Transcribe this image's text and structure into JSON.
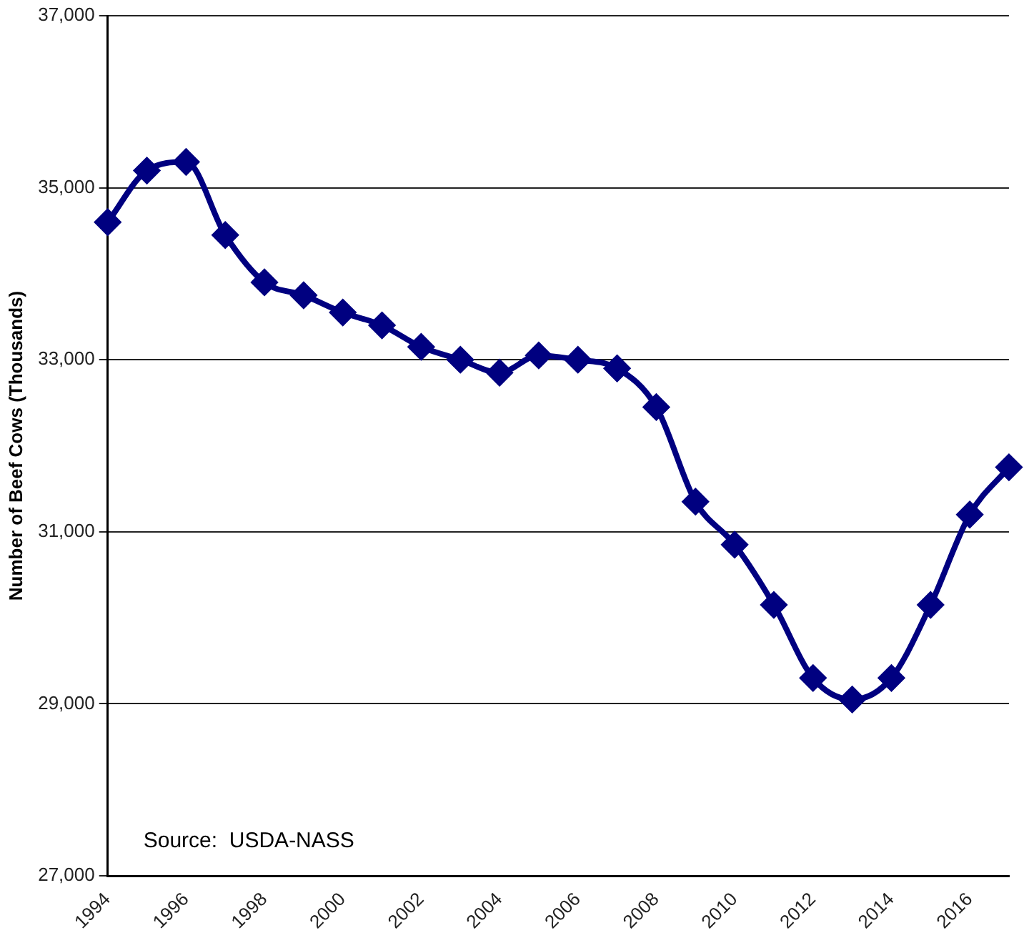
{
  "chart_data": {
    "type": "line",
    "ylabel": "Number of Beef Cows (Thousands)",
    "categories": [
      "1994",
      null,
      "1996",
      null,
      "1998",
      null,
      "2000",
      null,
      "2002",
      null,
      "2004",
      null,
      "2006",
      null,
      "2008",
      null,
      "2010",
      null,
      "2012",
      null,
      "2014",
      null,
      "2016",
      null
    ],
    "series": [
      {
        "color": "#000080",
        "values": [
          34600,
          35200,
          35300,
          34450,
          33900,
          33750,
          33550,
          33400,
          33150,
          33000,
          32850,
          33050,
          33000,
          32900,
          32450,
          31350,
          30850,
          30150,
          29300,
          29050,
          29300,
          30150,
          31200,
          31750
        ]
      }
    ],
    "ylim": [
      27000,
      37000
    ],
    "yticks": [
      {
        "value": 27000,
        "label": "27,000"
      },
      {
        "value": 29000,
        "label": "29,000"
      },
      {
        "value": 31000,
        "label": "31,000"
      },
      {
        "value": 33000,
        "label": "33,000"
      },
      {
        "value": 35000,
        "label": "35,000"
      },
      {
        "value": 37000,
        "label": "37,000"
      }
    ],
    "grid": "y",
    "legend": false,
    "marker": "diamond",
    "line_style": "solid",
    "annotations": [
      "Source:  USDA-NASS"
    ]
  }
}
